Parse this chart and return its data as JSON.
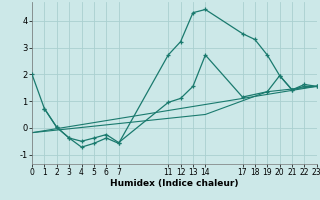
{
  "xlabel": "Humidex (Indice chaleur)",
  "bg_color": "#cce8e8",
  "grid_color": "#aad0d0",
  "line_color": "#1a7a6e",
  "line1_x": [
    0,
    1,
    2,
    3,
    4,
    5,
    6,
    7,
    11,
    12,
    13,
    14,
    17,
    18,
    19,
    20,
    21,
    22,
    23
  ],
  "line1_y": [
    2.0,
    0.72,
    0.02,
    -0.38,
    -0.72,
    -0.58,
    -0.38,
    -0.58,
    2.72,
    3.22,
    4.3,
    4.42,
    3.52,
    3.3,
    2.72,
    1.95,
    1.42,
    1.62,
    1.55
  ],
  "line2_x": [
    1,
    2,
    3,
    4,
    5,
    6,
    7,
    11,
    12,
    13,
    14,
    17,
    19,
    20,
    21,
    22,
    23
  ],
  "line2_y": [
    0.72,
    0.02,
    -0.38,
    -0.5,
    -0.38,
    -0.25,
    -0.55,
    0.95,
    1.1,
    1.55,
    2.72,
    1.15,
    1.35,
    1.95,
    1.42,
    1.55,
    1.55
  ],
  "line3_x": [
    0,
    23
  ],
  "line3_y": [
    -0.18,
    1.55
  ],
  "line4_x": [
    0,
    14,
    19,
    23
  ],
  "line4_y": [
    -0.18,
    0.5,
    1.35,
    1.55
  ],
  "xlim": [
    0,
    23
  ],
  "ylim": [
    -1.35,
    4.7
  ],
  "xticks": [
    0,
    1,
    2,
    3,
    4,
    5,
    6,
    7,
    11,
    12,
    13,
    14,
    17,
    18,
    19,
    20,
    21,
    22,
    23
  ],
  "yticks": [
    -1,
    0,
    1,
    2,
    3,
    4
  ]
}
